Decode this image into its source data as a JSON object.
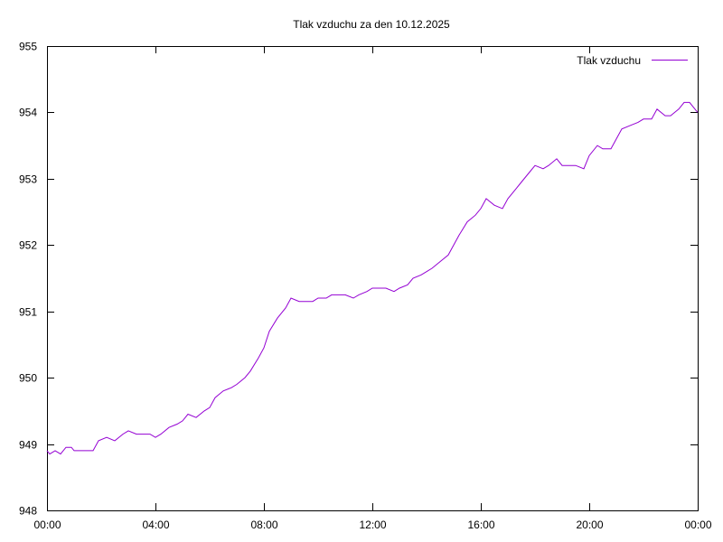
{
  "chart_data": {
    "type": "line",
    "title": "Tlak vzduchu za den 10.12.2025",
    "xlabel": "",
    "ylabel": "",
    "xlim": [
      0,
      24
    ],
    "ylim": [
      948,
      955
    ],
    "x_ticks": [
      {
        "value": 0,
        "label": "00:00"
      },
      {
        "value": 4,
        "label": "04:00"
      },
      {
        "value": 8,
        "label": "08:00"
      },
      {
        "value": 12,
        "label": "12:00"
      },
      {
        "value": 16,
        "label": "16:00"
      },
      {
        "value": 20,
        "label": "20:00"
      },
      {
        "value": 24,
        "label": "00:00"
      }
    ],
    "y_ticks": [
      {
        "value": 948,
        "label": "948"
      },
      {
        "value": 949,
        "label": "949"
      },
      {
        "value": 950,
        "label": "950"
      },
      {
        "value": 951,
        "label": "951"
      },
      {
        "value": 952,
        "label": "952"
      },
      {
        "value": 953,
        "label": "953"
      },
      {
        "value": 954,
        "label": "954"
      },
      {
        "value": 955,
        "label": "955"
      }
    ],
    "grid": false,
    "legend_position": "top-right",
    "series": [
      {
        "name": "Tlak vzduchu",
        "color": "#9400d3",
        "x": [
          0,
          0.1,
          0.3,
          0.5,
          0.7,
          0.9,
          1.0,
          1.2,
          1.5,
          1.7,
          1.9,
          2.2,
          2.5,
          2.8,
          3.0,
          3.3,
          3.5,
          3.8,
          4.0,
          4.2,
          4.5,
          4.8,
          5.0,
          5.2,
          5.5,
          5.8,
          6.0,
          6.2,
          6.5,
          6.8,
          7.0,
          7.3,
          7.5,
          7.8,
          8.0,
          8.2,
          8.5,
          8.8,
          9.0,
          9.3,
          9.5,
          9.8,
          10.0,
          10.3,
          10.5,
          10.8,
          11.0,
          11.3,
          11.5,
          11.8,
          12.0,
          12.3,
          12.5,
          12.8,
          13.0,
          13.3,
          13.5,
          13.8,
          14.0,
          14.2,
          14.5,
          14.8,
          15.0,
          15.2,
          15.5,
          15.8,
          16.0,
          16.2,
          16.5,
          16.8,
          17.0,
          17.3,
          17.5,
          17.8,
          18.0,
          18.3,
          18.5,
          18.8,
          19.0,
          19.3,
          19.5,
          19.8,
          20.0,
          20.3,
          20.5,
          20.8,
          21.0,
          21.2,
          21.5,
          21.8,
          22.0,
          22.3,
          22.5,
          22.8,
          23.0,
          23.3,
          23.5,
          23.7,
          23.9,
          24.0
        ],
        "values": [
          948.9,
          948.85,
          948.9,
          948.85,
          948.95,
          948.95,
          948.9,
          948.9,
          948.9,
          948.9,
          949.05,
          949.1,
          949.05,
          949.15,
          949.2,
          949.15,
          949.15,
          949.15,
          949.1,
          949.15,
          949.25,
          949.3,
          949.35,
          949.45,
          949.4,
          949.5,
          949.55,
          949.7,
          949.8,
          949.85,
          949.9,
          950.0,
          950.1,
          950.3,
          950.45,
          950.7,
          950.9,
          951.05,
          951.2,
          951.15,
          951.15,
          951.15,
          951.2,
          951.2,
          951.25,
          951.25,
          951.25,
          951.2,
          951.25,
          951.3,
          951.35,
          951.35,
          951.35,
          951.3,
          951.35,
          951.4,
          951.5,
          951.55,
          951.6,
          951.65,
          951.75,
          951.85,
          952.0,
          952.15,
          952.35,
          952.45,
          952.55,
          952.7,
          952.6,
          952.55,
          952.7,
          952.85,
          952.95,
          953.1,
          953.2,
          953.15,
          953.2,
          953.3,
          953.2,
          953.2,
          953.2,
          953.15,
          953.35,
          953.5,
          953.45,
          953.45,
          953.6,
          953.75,
          953.8,
          953.85,
          953.9,
          953.9,
          954.05,
          953.95,
          953.95,
          954.05,
          954.15,
          954.15,
          954.05,
          954.0
        ]
      }
    ]
  }
}
